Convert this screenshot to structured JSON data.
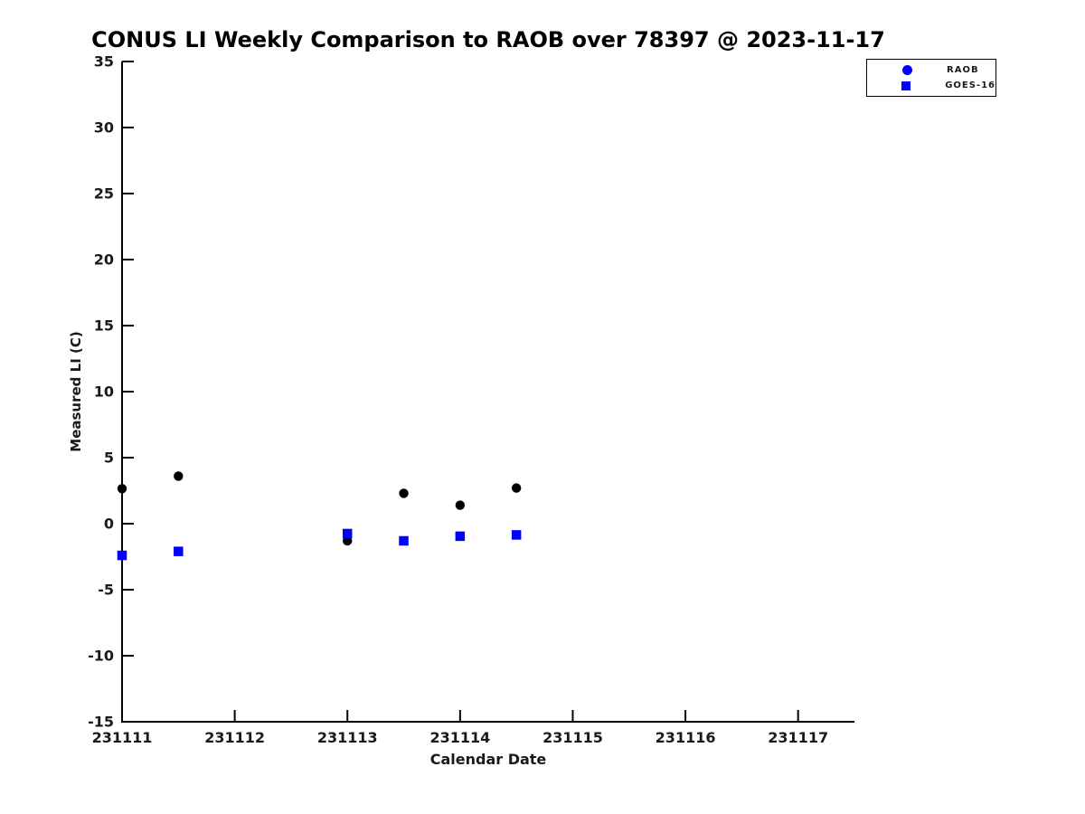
{
  "chart_data": {
    "type": "scatter",
    "title": "CONUS LI Weekly Comparison to RAOB over 78397 @ 2023-11-17",
    "xlabel": "Calendar Date",
    "ylabel": "Measured LI (C)",
    "xlim": [
      231111,
      231117.5
    ],
    "ylim": [
      -15,
      35
    ],
    "x_ticks": [
      231111,
      231112,
      231113,
      231114,
      231115,
      231116,
      231117
    ],
    "y_ticks": [
      35,
      30,
      25,
      20,
      15,
      10,
      5,
      0,
      -5,
      -10,
      -15
    ],
    "grid": false,
    "legend_position": "top-right-outside",
    "series": [
      {
        "name": "RAOB",
        "marker": "circle",
        "color": "#000000",
        "legend_color": "#0000ff",
        "x": [
          231111,
          231111.5,
          231113,
          231113.5,
          231114,
          231114.5
        ],
        "y": [
          2.65,
          3.6,
          -1.3,
          2.3,
          1.4,
          2.7
        ]
      },
      {
        "name": "GOES-16",
        "marker": "square",
        "color": "#0000ff",
        "legend_color": "#0000ff",
        "x": [
          231111,
          231111.5,
          231113,
          231113.5,
          231114,
          231114.5
        ],
        "y": [
          -2.4,
          -2.1,
          -0.75,
          -1.3,
          -0.95,
          -0.85
        ]
      }
    ]
  },
  "colors": {
    "accent_blue": "#0000ff",
    "marker_black": "#000000",
    "axis": "#000000",
    "background": "#ffffff"
  }
}
